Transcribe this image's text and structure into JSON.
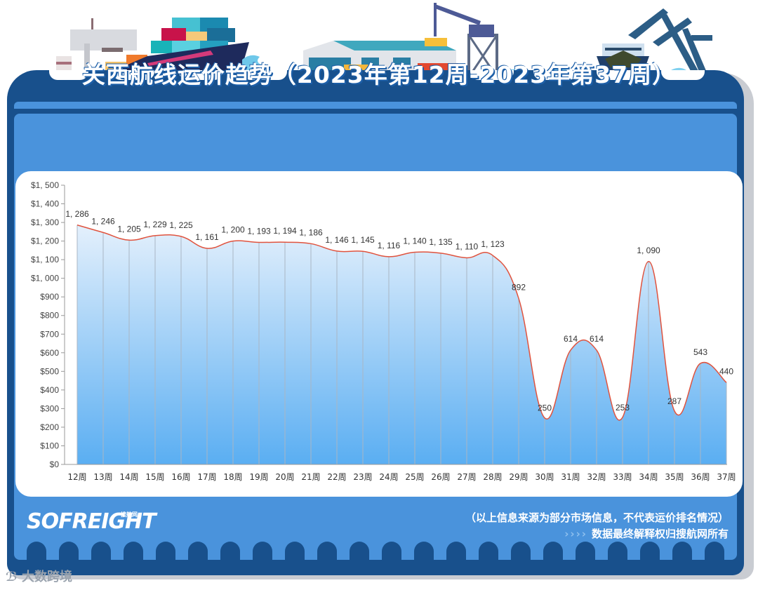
{
  "header": {
    "title": "关西航线运价趋势（2023年第12周-2023年第37周）"
  },
  "chart_data": {
    "type": "area",
    "title": "关西航线运价趋势（2023年第12周-2023年第37周）",
    "xlabel": "",
    "ylabel": "",
    "ylim": [
      0,
      1500
    ],
    "ytick_step": 100,
    "yticks": [
      "$0",
      "$100",
      "$200",
      "$300",
      "$400",
      "$500",
      "$600",
      "$700",
      "$800",
      "$900",
      "$1, 000",
      "$1, 100",
      "$1, 200",
      "$1, 300",
      "$1, 400",
      "$1, 500"
    ],
    "categories": [
      "12周",
      "13周",
      "14周",
      "15周",
      "16周",
      "17周",
      "18周",
      "19周",
      "20周",
      "21周",
      "22周",
      "23周",
      "24周",
      "25周",
      "26周",
      "27周",
      "28周",
      "29周",
      "30周",
      "31周",
      "32周",
      "33周",
      "34周",
      "35周",
      "36周",
      "37周"
    ],
    "series": [
      {
        "name": "关西航线运价",
        "values": [
          1286,
          1246,
          1205,
          1229,
          1225,
          1161,
          1200,
          1193,
          1194,
          1186,
          1146,
          1145,
          1116,
          1140,
          1135,
          1110,
          1123,
          892,
          250,
          614,
          614,
          253,
          1090,
          287,
          543,
          440
        ],
        "labels": [
          "1, 286",
          "1, 246",
          "1, 205",
          "1, 229",
          "1, 225",
          "1, 161",
          "1, 200",
          "1, 193",
          "1, 194",
          "1, 186",
          "1, 146",
          "1, 145",
          "1, 116",
          "1, 140",
          "1, 135",
          "1, 110",
          "1, 123",
          "892",
          "250",
          "614",
          "614",
          "253",
          "1, 090",
          "287",
          "543",
          "440"
        ]
      }
    ],
    "grid": false,
    "legend": "none",
    "colors": {
      "line": "#e0533e",
      "fill_top": "#e4f0fc",
      "fill_bottom": "#5aaef2",
      "axis": "#999999",
      "label": "#333333"
    }
  },
  "footer": {
    "brand": "SOFREIGHT",
    "brand_sub": "搜航网",
    "note_line1": "（以上信息来源为部分市场信息，不代表运价排名情况）",
    "note_arrows": "››››",
    "note_line2": "数据最终解释权归搜航网所有"
  },
  "watermark": {
    "text": "大数跨境"
  },
  "theme": {
    "frame": "#18508c",
    "panel": "#4a93dc",
    "card": "#ffffff"
  }
}
